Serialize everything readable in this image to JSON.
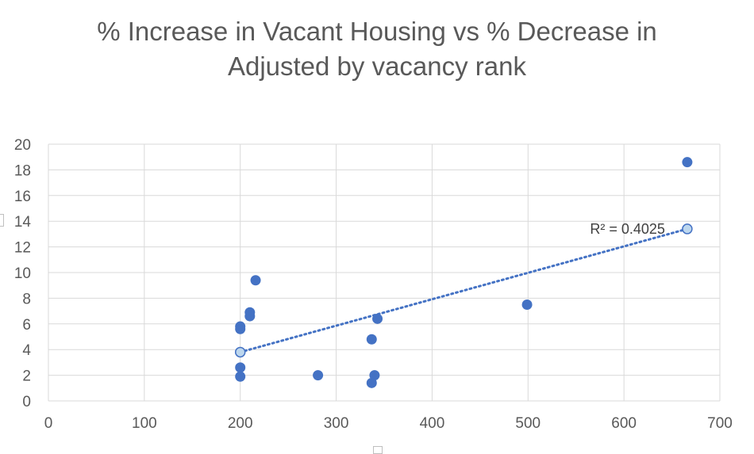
{
  "chart_data": {
    "type": "scatter",
    "title_line1": "% Increase in Vacant Housing vs % Decrease in",
    "title_line2": "Adjusted by vacancy rank",
    "xlabel": "",
    "ylabel": "",
    "xlim": [
      0,
      700
    ],
    "ylim": [
      0,
      20
    ],
    "x_ticks": [
      0,
      100,
      200,
      300,
      400,
      500,
      600,
      700
    ],
    "y_ticks": [
      0,
      2,
      4,
      6,
      8,
      10,
      12,
      14,
      16,
      18,
      20
    ],
    "grid": true,
    "legend": "none",
    "series": [
      {
        "points": [
          {
            "x": 200,
            "y": 1.9
          },
          {
            "x": 200,
            "y": 2.6
          },
          {
            "x": 200,
            "y": 5.6
          },
          {
            "x": 200,
            "y": 5.8
          },
          {
            "x": 210,
            "y": 6.6
          },
          {
            "x": 210,
            "y": 6.9
          },
          {
            "x": 216,
            "y": 9.4
          },
          {
            "x": 281,
            "y": 2.0
          },
          {
            "x": 337,
            "y": 1.4
          },
          {
            "x": 337,
            "y": 4.8
          },
          {
            "x": 340,
            "y": 2.0
          },
          {
            "x": 343,
            "y": 6.4
          },
          {
            "x": 499,
            "y": 7.5
          },
          {
            "x": 666,
            "y": 18.6
          }
        ]
      }
    ],
    "trendline": {
      "type": "linear",
      "style": "dotted",
      "start": {
        "x": 200,
        "y": 3.8
      },
      "end": {
        "x": 666,
        "y": 13.4
      },
      "r_squared_label": "R² = 0.4025"
    },
    "colors": {
      "marker": "#4472C4",
      "trend_endpoint_fill": "#BDD7EE",
      "grid": "#D9D9D9",
      "text": "#595959"
    }
  }
}
